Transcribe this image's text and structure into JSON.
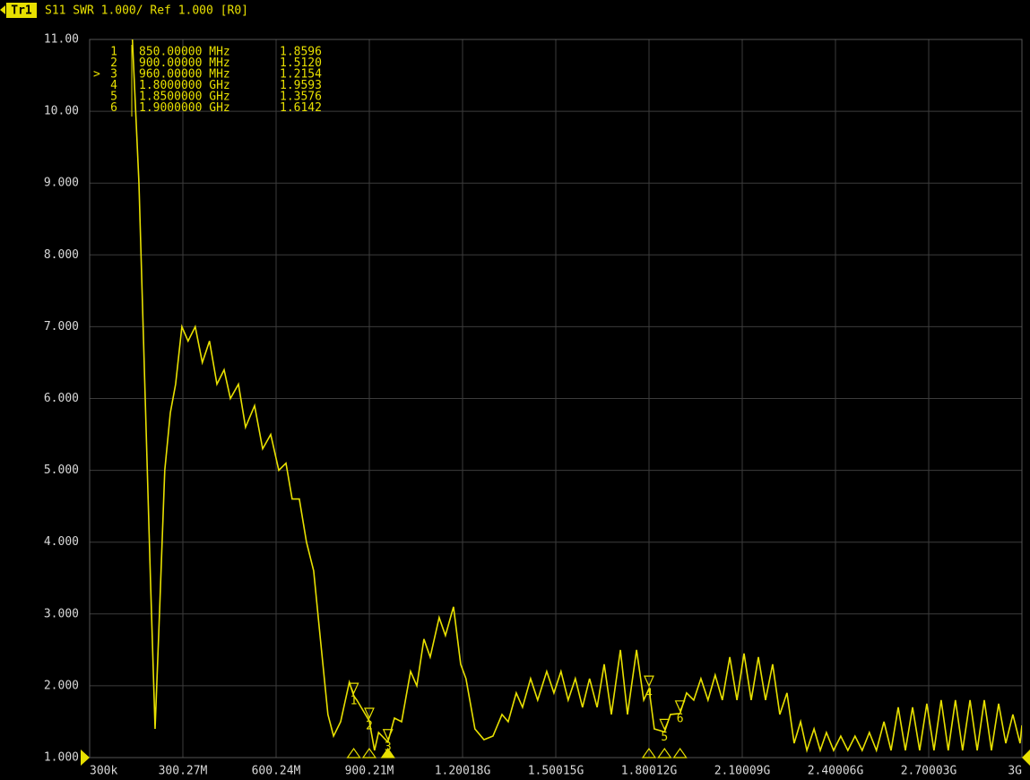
{
  "chart_data": {
    "type": "line",
    "trace_badge": "Tr1",
    "title": "S11 SWR 1.000/ Ref 1.000 [R0]",
    "xlim": [
      0.3,
      3000
    ],
    "xticks": [
      {
        "value": 0.3,
        "label": "300k"
      },
      {
        "value": 300.27,
        "label": "300.27M"
      },
      {
        "value": 600.24,
        "label": "600.24M"
      },
      {
        "value": 900.21,
        "label": "900.21M"
      },
      {
        "value": 1200.18,
        "label": "1.20018G"
      },
      {
        "value": 1500.15,
        "label": "1.50015G"
      },
      {
        "value": 1800.12,
        "label": "1.80012G"
      },
      {
        "value": 2100.09,
        "label": "2.10009G"
      },
      {
        "value": 2400.06,
        "label": "2.40006G"
      },
      {
        "value": 2700.03,
        "label": "2.70003G"
      },
      {
        "value": 3000,
        "label": "3G"
      }
    ],
    "ylim": [
      1,
      11
    ],
    "yticks": [
      {
        "value": 1,
        "label": "1.000"
      },
      {
        "value": 2,
        "label": "2.000"
      },
      {
        "value": 3,
        "label": "3.000"
      },
      {
        "value": 4,
        "label": "4.000"
      },
      {
        "value": 5,
        "label": "5.000"
      },
      {
        "value": 6,
        "label": "6.000"
      },
      {
        "value": 7,
        "label": "7.000"
      },
      {
        "value": 8,
        "label": "8.000"
      },
      {
        "value": 9,
        "label": "9.000"
      },
      {
        "value": 10,
        "label": "10.00"
      },
      {
        "value": 11,
        "label": "11.00"
      }
    ],
    "grid": true,
    "series": [
      {
        "name": "S11 SWR",
        "color": "#e8e000",
        "x": [
          138,
          159,
          179,
          196,
          211,
          225,
          242,
          260,
          277,
          297,
          317,
          340,
          363,
          386,
          410,
          433,
          453,
          479,
          502,
          531,
          557,
          583,
          609,
          632,
          652,
          675,
          698,
          721,
          744,
          767,
          785,
          808,
          836,
          850,
          860,
          900,
          917,
          930,
          960,
          981,
          1004,
          1033,
          1053,
          1076,
          1096,
          1125,
          1145,
          1171,
          1194,
          1211,
          1240,
          1269,
          1298,
          1327,
          1347,
          1373,
          1393,
          1419,
          1442,
          1471,
          1494,
          1517,
          1540,
          1563,
          1586,
          1609,
          1633,
          1656,
          1679,
          1708,
          1731,
          1760,
          1783,
          1800,
          1817,
          1850,
          1869,
          1900,
          1921,
          1944,
          1967,
          1990,
          2013,
          2036,
          2060,
          2083,
          2106,
          2129,
          2152,
          2175,
          2198,
          2221,
          2244,
          2267,
          2288,
          2308,
          2331,
          2351,
          2371,
          2394,
          2417,
          2440,
          2463,
          2486,
          2509,
          2532,
          2556,
          2579,
          2602,
          2625,
          2648,
          2671,
          2694,
          2717,
          2740,
          2763,
          2786,
          2809,
          2833,
          2856,
          2879,
          2902,
          2925,
          2948,
          2971,
          2994,
          3000
        ],
        "values": [
          11,
          9,
          6,
          3.5,
          1.4,
          3,
          5,
          5.8,
          6.2,
          7,
          6.8,
          7,
          6.5,
          6.8,
          6.2,
          6.4,
          6,
          6.2,
          5.6,
          5.9,
          5.3,
          5.5,
          5,
          5.1,
          4.6,
          4.6,
          4,
          3.6,
          2.6,
          1.6,
          1.3,
          1.5,
          2.05,
          1.8596,
          1.8,
          1.512,
          1.1,
          1.35,
          1.2154,
          1.55,
          1.5,
          2.2,
          2,
          2.65,
          2.4,
          2.95,
          2.7,
          3.1,
          2.3,
          2.1,
          1.4,
          1.25,
          1.3,
          1.6,
          1.5,
          1.9,
          1.7,
          2.1,
          1.8,
          2.2,
          1.9,
          2.2,
          1.8,
          2.1,
          1.7,
          2.1,
          1.7,
          2.3,
          1.6,
          2.5,
          1.6,
          2.5,
          1.8,
          1.9593,
          1.4,
          1.3576,
          1.6,
          1.6142,
          1.9,
          1.8,
          2.1,
          1.8,
          2.15,
          1.8,
          2.4,
          1.8,
          2.45,
          1.8,
          2.4,
          1.8,
          2.3,
          1.6,
          1.9,
          1.2,
          1.5,
          1.1,
          1.4,
          1.1,
          1.35,
          1.1,
          1.3,
          1.1,
          1.3,
          1.1,
          1.35,
          1.1,
          1.5,
          1.1,
          1.7,
          1.1,
          1.7,
          1.1,
          1.75,
          1.1,
          1.8,
          1.1,
          1.8,
          1.1,
          1.8,
          1.1,
          1.8,
          1.1,
          1.75,
          1.2,
          1.6,
          1.2,
          1.45
        ]
      }
    ],
    "markers": {
      "ids": [
        "1",
        "2",
        "3",
        "4",
        "5",
        "6"
      ],
      "active": 2,
      "active_prefix": ">",
      "frequencies": [
        "850.00000 MHz",
        "900.00000 MHz",
        "960.00000 MHz",
        "1.8000000 GHz",
        "1.8500000 GHz",
        "1.9000000 GHz"
      ],
      "x": [
        850,
        900,
        960,
        1800,
        1850,
        1900
      ],
      "values": [
        1.8596,
        1.512,
        1.2154,
        1.9593,
        1.3576,
        1.6142
      ],
      "value_labels": [
        "1.8596",
        "1.5120",
        "1.2154",
        "1.9593",
        "1.3576",
        "1.6142"
      ]
    }
  }
}
